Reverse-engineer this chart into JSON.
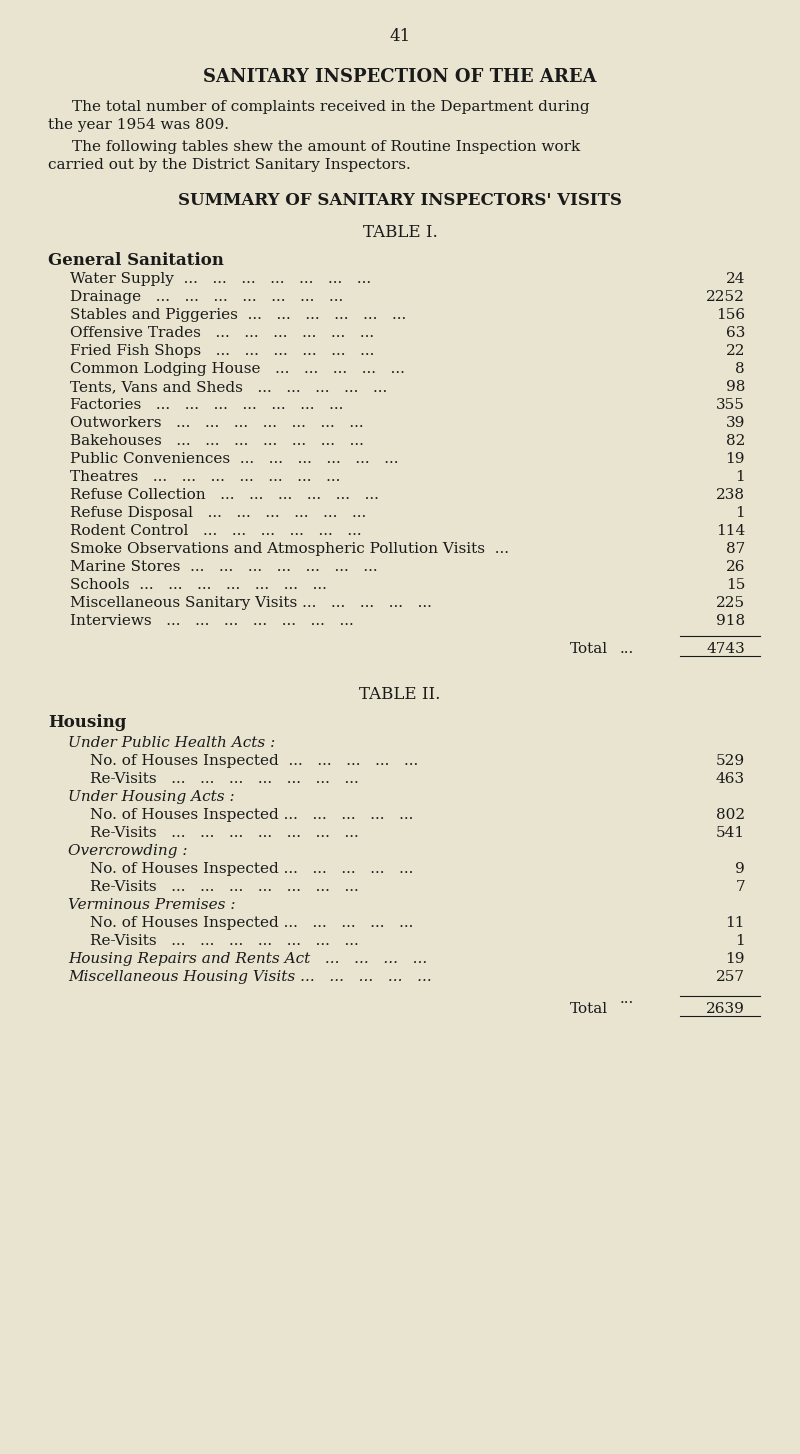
{
  "page_number": "41",
  "bg_color": "#e8e4d0",
  "main_title": "SANITARY INSPECTION OF THE AREA",
  "intro_para1": "The total number of complaints received in the Department during the year 1954 was 809.",
  "intro_para2": "The following tables shew the amount of Routine Inspection work carried out by the District Sanitary Inspectors.",
  "section1_title": "SUMMARY OF SANITARY INSPECTORS' VISITS",
  "table1_title": "TABLE I.",
  "table1_section": "General Sanitation",
  "table1_rows": [
    [
      "Water Supply  ...   ...   ...   ...   ...   ...   ...",
      "24"
    ],
    [
      "Drainage   ...   ...   ...   ...   ...   ...   ...",
      "2252"
    ],
    [
      "Stables and Piggeries  ...   ...   ...   ...   ...   ...",
      "156"
    ],
    [
      "Offensive Trades   ...   ...   ...   ...   ...   ...",
      "63"
    ],
    [
      "Fried Fish Shops   ...   ...   ...   ...   ...   ...",
      "22"
    ],
    [
      "Common Lodging House   ...   ...   ...   ...   ...",
      "8"
    ],
    [
      "Tents, Vans and Sheds   ...   ...   ...   ...   ...",
      "98"
    ],
    [
      "Factories   ...   ...   ...   ...   ...   ...   ...",
      "355"
    ],
    [
      "Outworkers   ...   ...   ...   ...   ...   ...   ...",
      "39"
    ],
    [
      "Bakehouses   ...   ...   ...   ...   ...   ...   ...",
      "82"
    ],
    [
      "Public Conveniences  ...   ...   ...   ...   ...   ...",
      "19"
    ],
    [
      "Theatres   ...   ...   ...   ...   ...   ...   ...",
      "1"
    ],
    [
      "Refuse Collection   ...   ...   ...   ...   ...   ...",
      "238"
    ],
    [
      "Refuse Disposal   ...   ...   ...   ...   ...   ...",
      "1"
    ],
    [
      "Rodent Control   ...   ...   ...   ...   ...   ...",
      "114"
    ],
    [
      "Smoke Observations and Atmospheric Pollution Visits  ...",
      "87"
    ],
    [
      "Marine Stores  ...   ...   ...   ...   ...   ...   ...",
      "26"
    ],
    [
      "Schools  ...   ...   ...   ...   ...   ...   ...",
      "15"
    ],
    [
      "Miscellaneous Sanitary Visits ...   ...   ...   ...   ...",
      "225"
    ],
    [
      "Interviews   ...   ...   ...   ...   ...   ...   ...",
      "918"
    ]
  ],
  "table1_total_label": "Total",
  "table1_total_dots": "...",
  "table1_total_value": "4743",
  "table2_title": "TABLE II.",
  "table2_section": "Housing",
  "table2_subsections": [
    {
      "header": "Under Public Health Acts :",
      "rows": [
        [
          "No. of Houses Inspected  ...   ...   ...   ...   ...",
          "529"
        ],
        [
          "Re-Visits   ...   ...   ...   ...   ...   ...   ...",
          "463"
        ]
      ]
    },
    {
      "header": "Under Housing Acts :",
      "rows": [
        [
          "No. of Houses Inspected ...   ...   ...   ...   ...",
          "802"
        ],
        [
          "Re-Visits   ...   ...   ...   ...   ...   ...   ...",
          "541"
        ]
      ]
    },
    {
      "header": "Overcrowding :",
      "rows": [
        [
          "No. of Houses Inspected ...   ...   ...   ...   ...",
          "9"
        ],
        [
          "Re-Visits   ...   ...   ...   ...   ...   ...   ...",
          "7"
        ]
      ]
    },
    {
      "header": "Verminous Premises :",
      "rows": [
        [
          "No. of Houses Inspected ...   ...   ...   ...   ...",
          "11"
        ],
        [
          "Re-Visits   ...   ...   ...   ...   ...   ...   ...",
          "1"
        ]
      ]
    }
  ],
  "table2_extra_rows": [
    [
      "Housing Repairs and Rents Act   ...   ...   ...   ...",
      "19"
    ],
    [
      "Miscellaneous Housing Visits ...   ...   ...   ...   ...",
      "257"
    ]
  ],
  "table2_total_label": "Total",
  "table2_total_dots": "...",
  "table2_total_value": "2639"
}
